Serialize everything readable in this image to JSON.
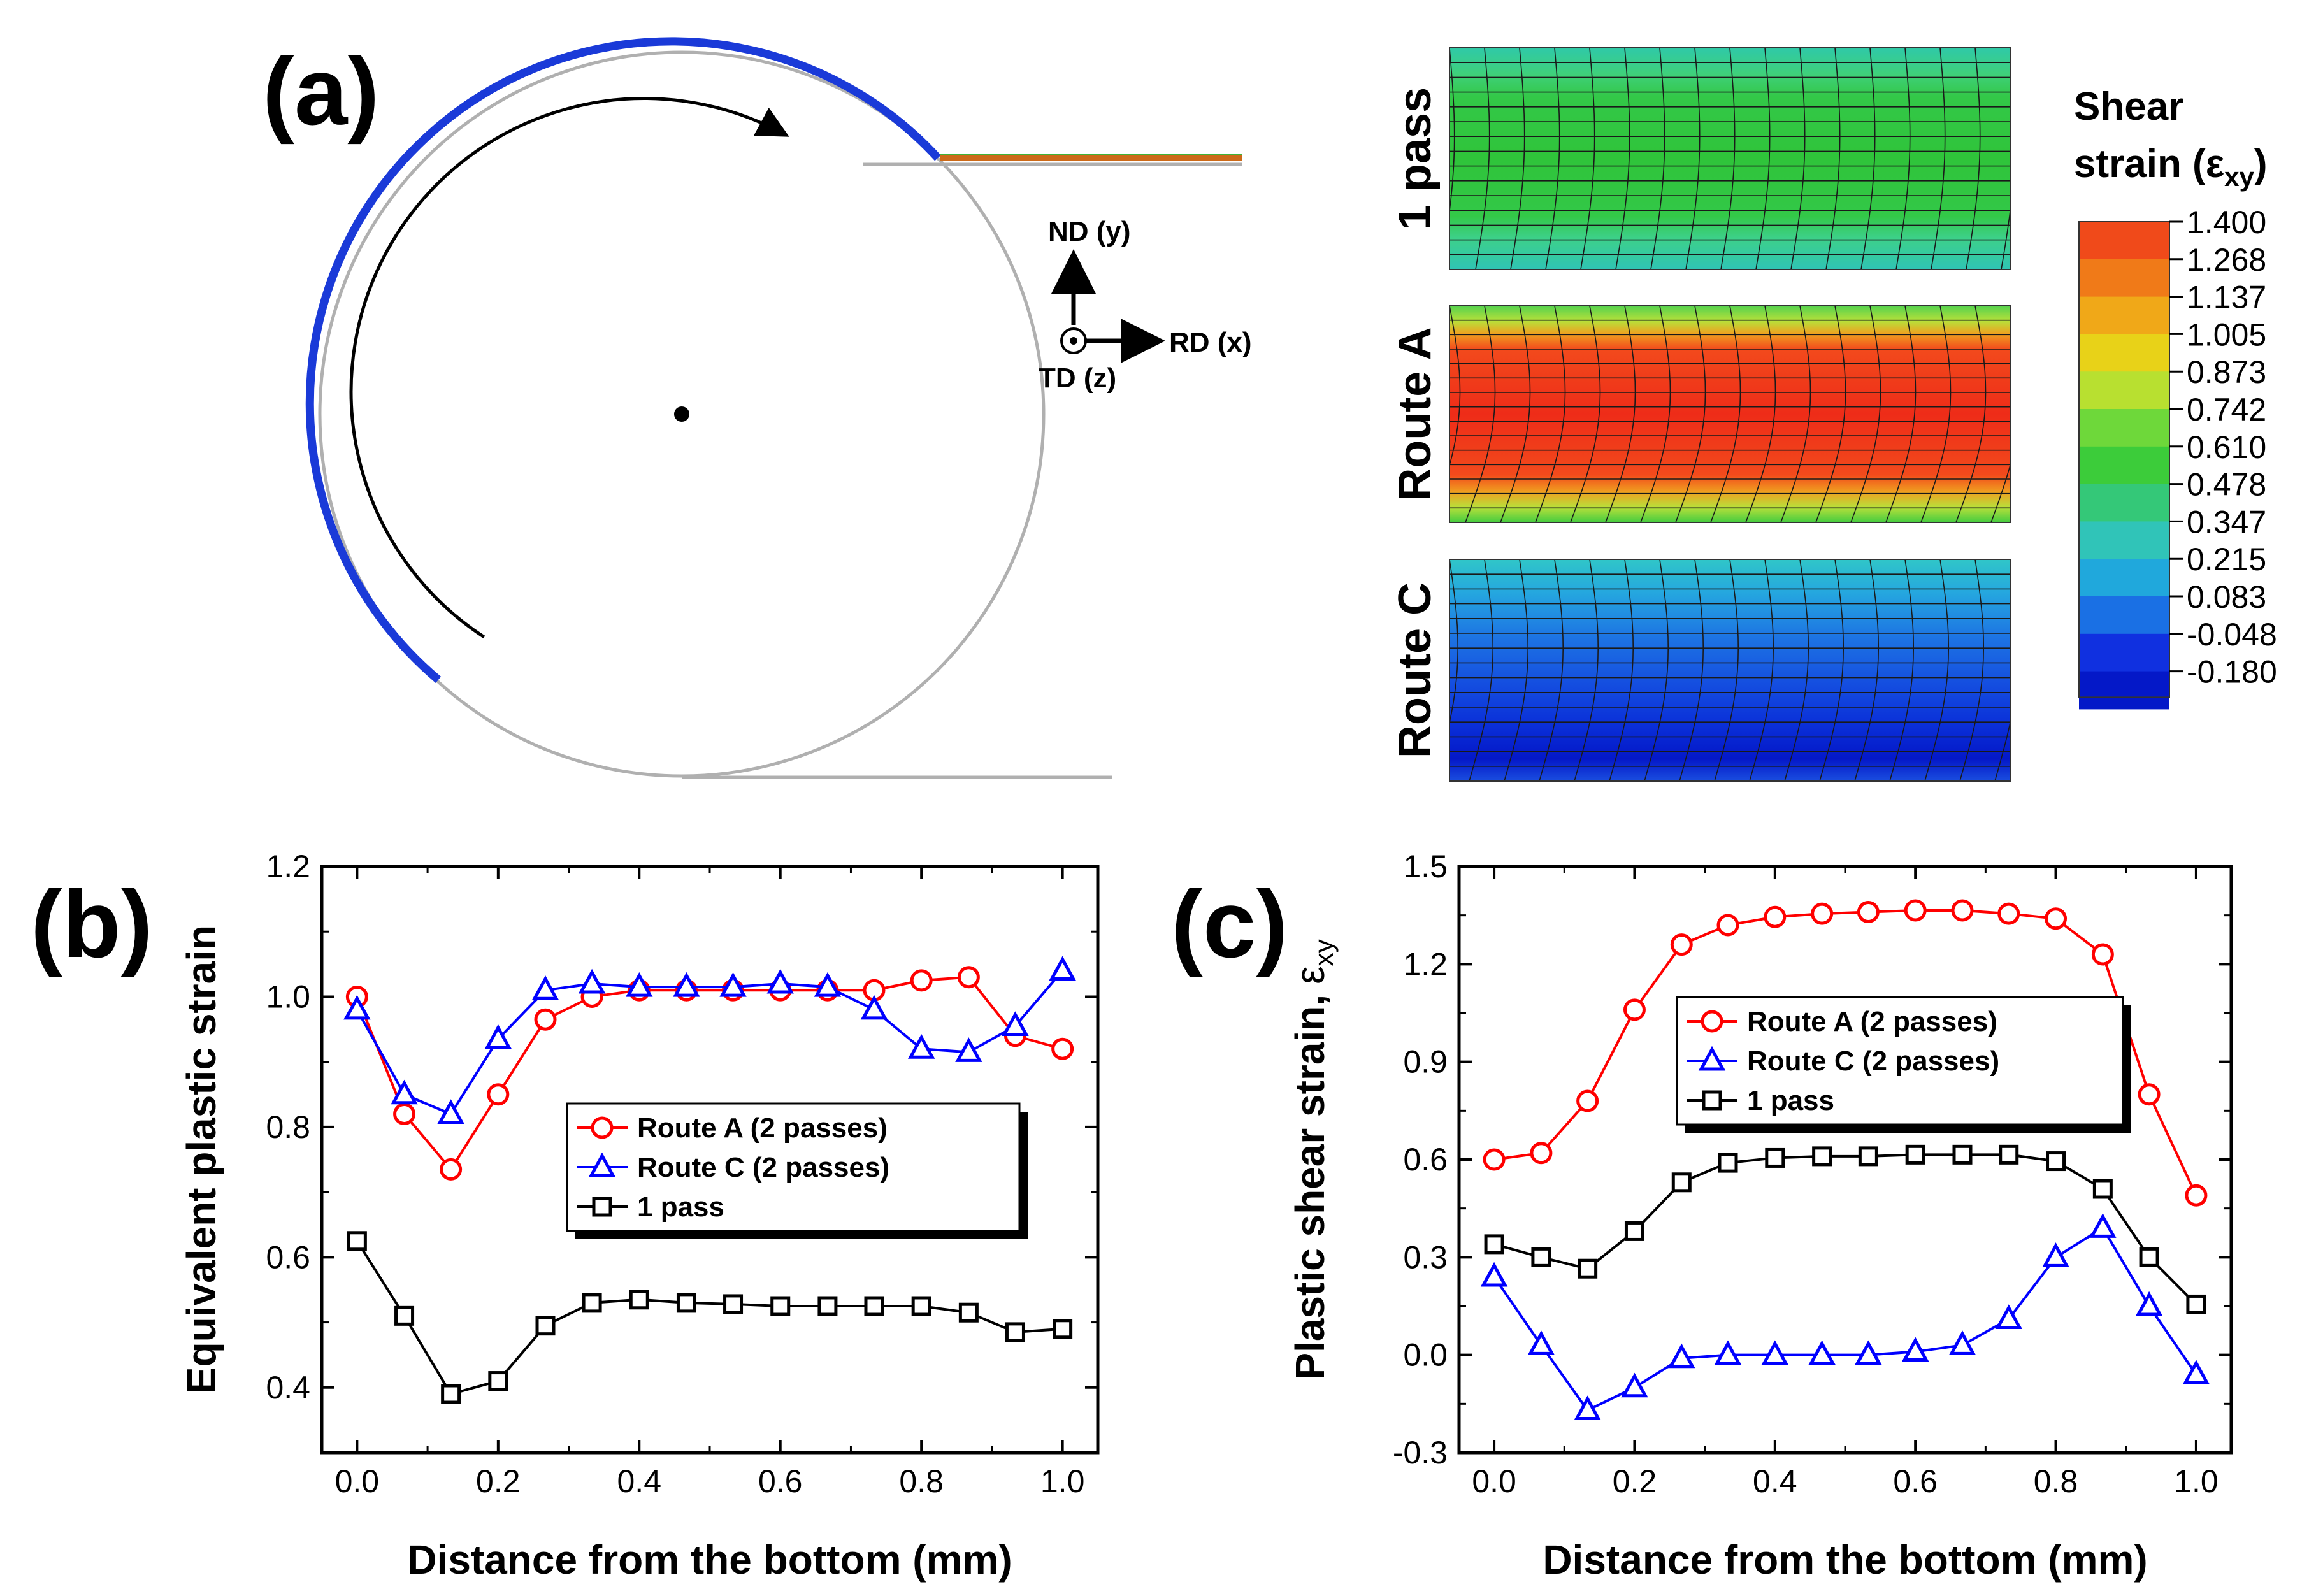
{
  "panel_a": {
    "label": "(a)",
    "axes": {
      "nd": "ND (y)",
      "rd": "RD (x)",
      "td": "TD (z)"
    },
    "maps": [
      {
        "label": "1 pass",
        "strain_range": [
          0.215,
          0.742
        ]
      },
      {
        "label": "Route A",
        "strain_range": [
          0.61,
          1.4
        ]
      },
      {
        "label": "Route C",
        "strain_range": [
          -0.18,
          0.347
        ]
      }
    ],
    "legend": {
      "title_line1": "Shear",
      "title_line2": "strain (ε",
      "title_sub": "xy",
      "title_close": ")",
      "values": [
        "1.400",
        "1.268",
        "1.137",
        "1.005",
        "0.873",
        "0.742",
        "0.610",
        "0.478",
        "0.347",
        "0.215",
        "0.083",
        "-0.048",
        "-0.180"
      ]
    }
  },
  "chart_data": [
    {
      "type": "line",
      "panel": "(b)",
      "xlabel": "Distance from the bottom (mm)",
      "ylabel": "Equivalent plastic strain",
      "xlim": [
        -0.05,
        1.05
      ],
      "ylim": [
        0.3,
        1.2
      ],
      "xticks": [
        0.0,
        0.2,
        0.4,
        0.6,
        0.8,
        1.0
      ],
      "yticks": [
        0.4,
        0.6,
        0.8,
        1.0,
        1.2
      ],
      "x": [
        0,
        0.067,
        0.133,
        0.2,
        0.267,
        0.333,
        0.4,
        0.467,
        0.533,
        0.6,
        0.667,
        0.733,
        0.8,
        0.867,
        0.933,
        1.0
      ],
      "series": [
        {
          "name": "Route A (2 passes)",
          "color": "#ff0000",
          "marker": "circle",
          "values": [
            1.0,
            0.82,
            0.735,
            0.85,
            0.965,
            1.0,
            1.01,
            1.01,
            1.01,
            1.01,
            1.01,
            1.01,
            1.025,
            1.03,
            0.94,
            0.92
          ]
        },
        {
          "name": "Route C (2 passes)",
          "color": "#0000ff",
          "marker": "triangle",
          "values": [
            0.98,
            0.85,
            0.82,
            0.935,
            1.01,
            1.02,
            1.015,
            1.015,
            1.015,
            1.02,
            1.015,
            0.98,
            0.92,
            0.915,
            0.955,
            1.04
          ]
        },
        {
          "name": "1 pass",
          "color": "#000000",
          "marker": "square",
          "values": [
            0.625,
            0.51,
            0.39,
            0.41,
            0.495,
            0.53,
            0.535,
            0.53,
            0.528,
            0.525,
            0.525,
            0.525,
            0.525,
            0.515,
            0.485,
            0.49
          ]
        }
      ],
      "legend": "center-right"
    },
    {
      "type": "line",
      "panel": "(c)",
      "xlabel": "Distance from the bottom (mm)",
      "ylabel": "Plastic shear strain,",
      "ylabel_symbol": "ε",
      "ylabel_sub": "xy",
      "xlim": [
        -0.05,
        1.05
      ],
      "ylim": [
        -0.3,
        1.5
      ],
      "xticks": [
        0.0,
        0.2,
        0.4,
        0.6,
        0.8,
        1.0
      ],
      "yticks": [
        -0.3,
        0.0,
        0.3,
        0.6,
        0.9,
        1.2,
        1.5
      ],
      "x": [
        0,
        0.067,
        0.133,
        0.2,
        0.267,
        0.333,
        0.4,
        0.467,
        0.533,
        0.6,
        0.667,
        0.733,
        0.8,
        0.867,
        0.933,
        1.0
      ],
      "series": [
        {
          "name": "Route A (2 passes)",
          "color": "#ff0000",
          "marker": "circle",
          "values": [
            0.6,
            0.62,
            0.78,
            1.06,
            1.26,
            1.32,
            1.345,
            1.355,
            1.36,
            1.365,
            1.365,
            1.355,
            1.34,
            1.23,
            0.8,
            0.49
          ]
        },
        {
          "name": "Route C (2 passes)",
          "color": "#0000ff",
          "marker": "triangle",
          "values": [
            0.24,
            0.03,
            -0.17,
            -0.1,
            -0.01,
            0.0,
            0.0,
            0.0,
            0.0,
            0.01,
            0.03,
            0.11,
            0.3,
            0.39,
            0.15,
            -0.06
          ]
        },
        {
          "name": "1 pass",
          "color": "#000000",
          "marker": "square",
          "values": [
            0.34,
            0.3,
            0.265,
            0.38,
            0.53,
            0.59,
            0.605,
            0.61,
            0.61,
            0.615,
            0.615,
            0.615,
            0.595,
            0.51,
            0.3,
            0.155
          ]
        }
      ],
      "legend": "center-left"
    }
  ]
}
